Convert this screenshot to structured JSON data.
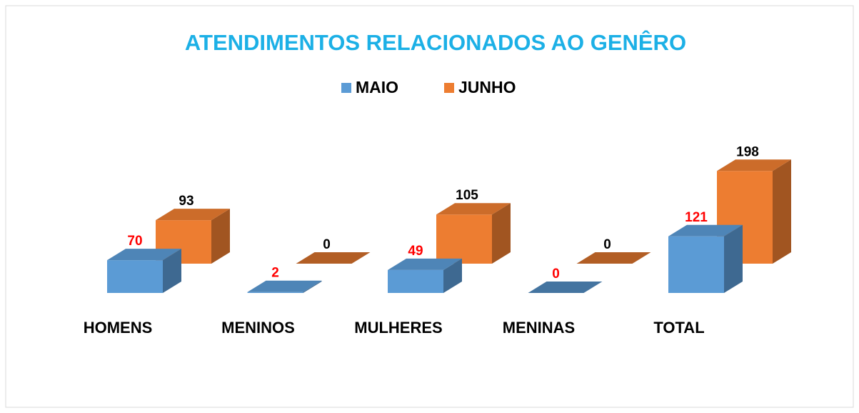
{
  "chart_data": {
    "type": "bar3d",
    "title": "ATENDIMENTOS RELACIONADOS AO GENÊRO",
    "categories": [
      "HOMENS",
      "MENINOS",
      "MULHERES",
      "MENINAS",
      "TOTAL"
    ],
    "series": [
      {
        "name": "MAIO",
        "color": "#5b9bd5",
        "label_color": "#ff0000",
        "values": [
          70,
          2,
          49,
          0,
          121
        ]
      },
      {
        "name": "JUNHO",
        "color": "#ed7d31",
        "label_color": "#000000",
        "values": [
          93,
          0,
          105,
          0,
          198
        ]
      }
    ],
    "legend": "top"
  }
}
